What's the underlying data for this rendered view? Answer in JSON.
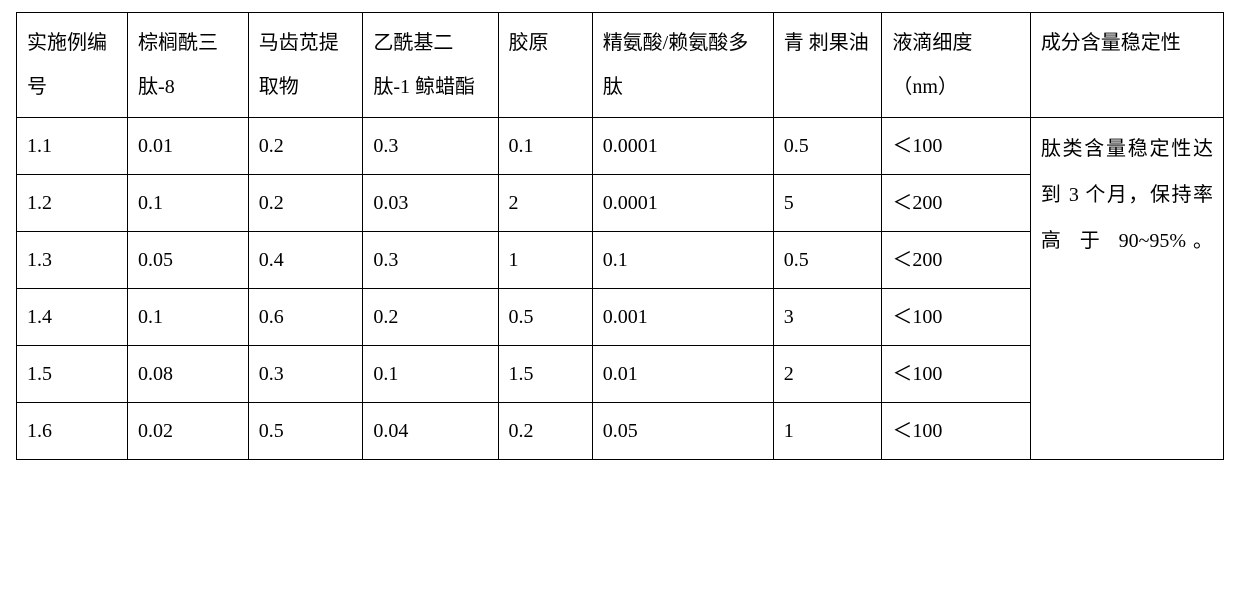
{
  "table": {
    "columns": [
      "实施例编号",
      "棕榈酰三肽-8",
      "马齿苋提取物",
      "乙酰基二肽-1 鲸蜡酯",
      "胶原",
      "精氨酸/赖氨酸多肽",
      "青 刺果油",
      "液滴细度（nm）",
      "成分含量稳定性"
    ],
    "rows": [
      [
        "1.1",
        "0.01",
        "0.2",
        "0.3",
        "0.1",
        "0.0001",
        "0.5",
        "＜100"
      ],
      [
        "1.2",
        "0.1",
        "0.2",
        "0.03",
        "2",
        "0.0001",
        "5",
        "＜200"
      ],
      [
        "1.3",
        "0.05",
        "0.4",
        "0.3",
        "1",
        "0.1",
        "0.5",
        "＜200"
      ],
      [
        "1.4",
        "0.1",
        "0.6",
        "0.2",
        "0.5",
        "0.001",
        "3",
        "＜100"
      ],
      [
        "1.5",
        "0.08",
        "0.3",
        "0.1",
        "1.5",
        "0.01",
        "2",
        "＜100"
      ],
      [
        "1.6",
        "0.02",
        "0.5",
        "0.04",
        "0.2",
        "0.05",
        "1",
        "＜100"
      ]
    ],
    "stability_text": "肽类含量稳定性达到 3 个月，保持率 高 于 90~95%。",
    "border_color": "#000000",
    "background_color": "#ffffff",
    "font_family": "SimSun",
    "fontsize_pt": 15,
    "header_line_height": 2.2,
    "body_line_height": 2.0,
    "col_widths_pct": [
      9.2,
      10.0,
      9.5,
      11.2,
      7.8,
      15.0,
      9.0,
      12.3,
      16.0
    ]
  }
}
